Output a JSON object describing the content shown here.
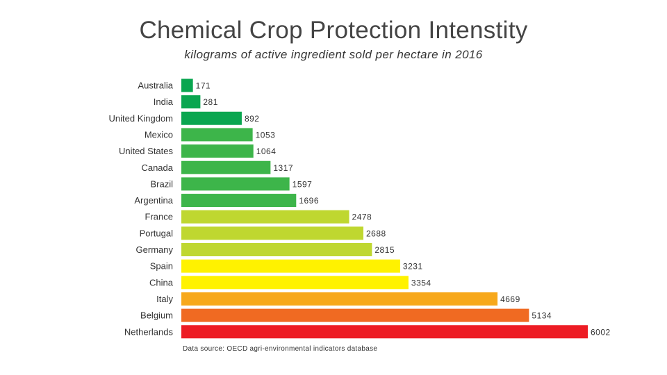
{
  "chart_data": {
    "type": "bar",
    "orientation": "horizontal",
    "title": "Chemical Crop Protection Intenstity",
    "subtitle": "kilograms of active ingredient sold per hectare in 2016",
    "xlabel": "",
    "ylabel": "",
    "xlim": [
      0,
      6002
    ],
    "grid": false,
    "legend": "none",
    "categories": [
      "Australia",
      "India",
      "United Kingdom",
      "Mexico",
      "United States",
      "Canada",
      "Brazil",
      "Argentina",
      "France",
      "Portugal",
      "Germany",
      "Spain",
      "China",
      "Italy",
      "Belgium",
      "Netherlands"
    ],
    "values": [
      171,
      281,
      892,
      1053,
      1064,
      1317,
      1597,
      1696,
      2478,
      2688,
      2815,
      3231,
      3354,
      4669,
      5134,
      6002
    ],
    "colors": [
      "#0aa650",
      "#0aa650",
      "#0aa650",
      "#3db54a",
      "#3db54a",
      "#3db54a",
      "#3db54a",
      "#3db54a",
      "#bfd730",
      "#bfd730",
      "#bfd730",
      "#fff200",
      "#fff200",
      "#f7a81b",
      "#f06a22",
      "#ed1c24"
    ],
    "source": "Data source: OECD agri-environmental indicators database"
  }
}
